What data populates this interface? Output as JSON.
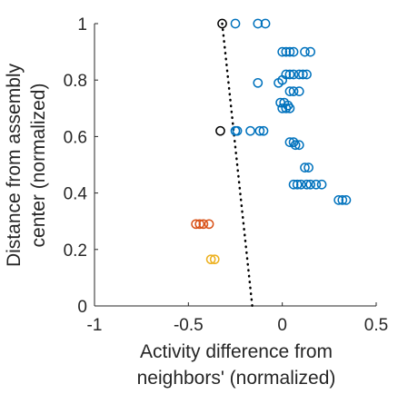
{
  "chart_data": {
    "type": "scatter",
    "xlabel": [
      "Activity difference from",
      "neighbors' (normalized)"
    ],
    "ylabel": [
      "Distance from assembly",
      "center (normalized)"
    ],
    "xlim": [
      -1,
      0.5
    ],
    "ylim": [
      0,
      1
    ],
    "xticks": [
      -1,
      -0.5,
      0,
      0.5
    ],
    "xtick_labels": [
      "-1",
      "-0.5",
      "0",
      "0.5"
    ],
    "yticks": [
      0,
      0.2,
      0.4,
      0.6,
      0.8,
      1
    ],
    "ytick_labels": [
      "0",
      "0.2",
      "0.4",
      "0.6",
      "0.8",
      "1"
    ],
    "grid": false,
    "marker": "open-circle",
    "fit_line": {
      "style": "dotted",
      "color": "#000000",
      "x": [
        -0.32,
        -0.16
      ],
      "y": [
        1.0,
        0.0
      ]
    },
    "series": [
      {
        "color": "#0072BD",
        "points": [
          [
            -0.25,
            1.0
          ],
          [
            -0.13,
            1.0
          ],
          [
            -0.09,
            1.0
          ],
          [
            0.0,
            0.9
          ],
          [
            0.02,
            0.9
          ],
          [
            0.04,
            0.9
          ],
          [
            0.06,
            0.9
          ],
          [
            0.12,
            0.9
          ],
          [
            0.15,
            0.9
          ],
          [
            0.02,
            0.82
          ],
          [
            0.04,
            0.82
          ],
          [
            0.06,
            0.82
          ],
          [
            0.09,
            0.82
          ],
          [
            0.11,
            0.82
          ],
          [
            0.13,
            0.82
          ],
          [
            -0.13,
            0.79
          ],
          [
            -0.02,
            0.79
          ],
          [
            0.0,
            0.8
          ],
          [
            0.04,
            0.76
          ],
          [
            0.06,
            0.76
          ],
          [
            0.09,
            0.76
          ],
          [
            -0.01,
            0.72
          ],
          [
            0.01,
            0.72
          ],
          [
            0.03,
            0.71
          ],
          [
            0.0,
            0.7
          ],
          [
            0.02,
            0.7
          ],
          [
            0.04,
            0.7
          ],
          [
            -0.25,
            0.62
          ],
          [
            -0.24,
            0.62
          ],
          [
            -0.17,
            0.62
          ],
          [
            -0.12,
            0.62
          ],
          [
            -0.1,
            0.62
          ],
          [
            0.04,
            0.58
          ],
          [
            0.06,
            0.58
          ],
          [
            0.07,
            0.57
          ],
          [
            0.09,
            0.57
          ],
          [
            0.12,
            0.49
          ],
          [
            0.14,
            0.49
          ],
          [
            0.06,
            0.43
          ],
          [
            0.08,
            0.43
          ],
          [
            0.1,
            0.43
          ],
          [
            0.13,
            0.43
          ],
          [
            0.15,
            0.43
          ],
          [
            0.18,
            0.43
          ],
          [
            0.21,
            0.43
          ],
          [
            0.3,
            0.375
          ],
          [
            0.32,
            0.375
          ],
          [
            0.34,
            0.375
          ]
        ]
      },
      {
        "color": "#D95319",
        "points": [
          [
            -0.46,
            0.29
          ],
          [
            -0.44,
            0.29
          ],
          [
            -0.42,
            0.29
          ],
          [
            -0.39,
            0.29
          ]
        ]
      },
      {
        "color": "#EDB120",
        "points": [
          [
            -0.38,
            0.165
          ],
          [
            -0.36,
            0.165
          ]
        ]
      },
      {
        "color": "#000000",
        "points": [
          [
            -0.32,
            1.0
          ],
          [
            -0.33,
            0.62
          ]
        ]
      }
    ]
  }
}
